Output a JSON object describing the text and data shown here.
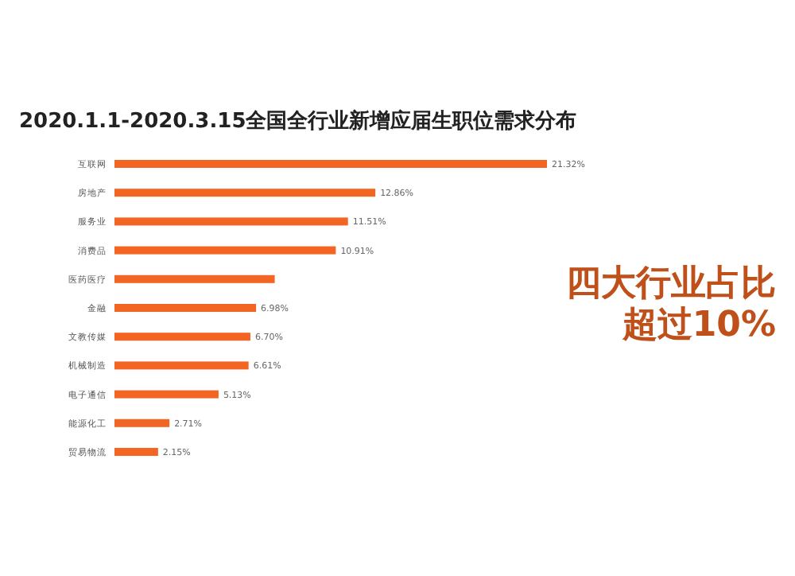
{
  "chart_data": {
    "type": "bar",
    "orientation": "horizontal",
    "title": "2020.1.1-2020.3.15全国全行业新增应届生职位需求分布",
    "categories": [
      "互联网",
      "房地产",
      "服务业",
      "消费品",
      "医药医疗",
      "金融",
      "文教传媒",
      "机械制造",
      "电子通信",
      "能源化工",
      "贸易物流"
    ],
    "values": [
      21.32,
      12.86,
      11.51,
      10.91,
      7.9,
      6.98,
      6.7,
      6.61,
      5.13,
      2.71,
      2.15
    ],
    "value_labels": [
      "21.32%",
      "12.86%",
      "11.51%",
      "10.91%",
      null,
      "6.98%",
      "6.70%",
      "6.61%",
      "5.13%",
      "2.71%",
      "2.15%"
    ],
    "color": "#f26522",
    "annotations": [
      "四大行业占比超过10%"
    ]
  }
}
